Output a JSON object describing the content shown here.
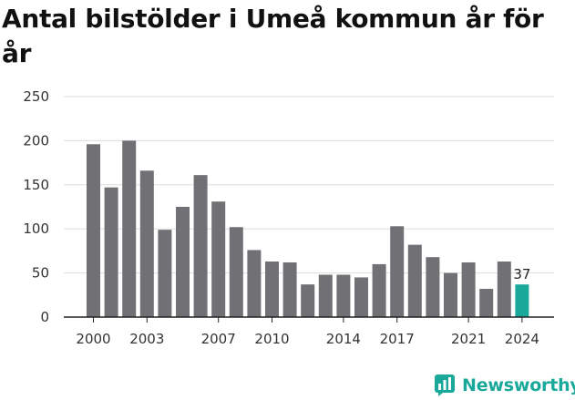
{
  "title": "Antal bilstölder i Umeå kommun år för år",
  "brand": {
    "name": "Newsworthy",
    "logo": "newsworthy-chart-logo",
    "color": "#1aa89a"
  },
  "colors": {
    "bar": "#717074",
    "highlight": "#1aa89a",
    "grid": "#dddddd",
    "axis": "#222222"
  },
  "chart_data": {
    "type": "bar",
    "title": "Antal bilstölder i Umeå kommun år för år",
    "xlabel": "",
    "ylabel": "",
    "categories": [
      2000,
      2001,
      2002,
      2003,
      2004,
      2005,
      2006,
      2007,
      2008,
      2009,
      2010,
      2011,
      2012,
      2013,
      2014,
      2015,
      2016,
      2017,
      2018,
      2019,
      2020,
      2021,
      2022,
      2023,
      2024
    ],
    "values": [
      196,
      147,
      200,
      166,
      99,
      125,
      161,
      131,
      102,
      76,
      63,
      62,
      37,
      48,
      48,
      45,
      60,
      103,
      82,
      68,
      50,
      62,
      32,
      63,
      37
    ],
    "highlight_category": 2024,
    "data_labels": [
      {
        "category": 2024,
        "text": "37"
      }
    ],
    "ylim": [
      0,
      250
    ],
    "yticks": [
      0,
      50,
      100,
      150,
      200,
      250
    ],
    "xticks": [
      2000,
      2003,
      2007,
      2010,
      2014,
      2017,
      2021,
      2024
    ],
    "grid": true
  }
}
